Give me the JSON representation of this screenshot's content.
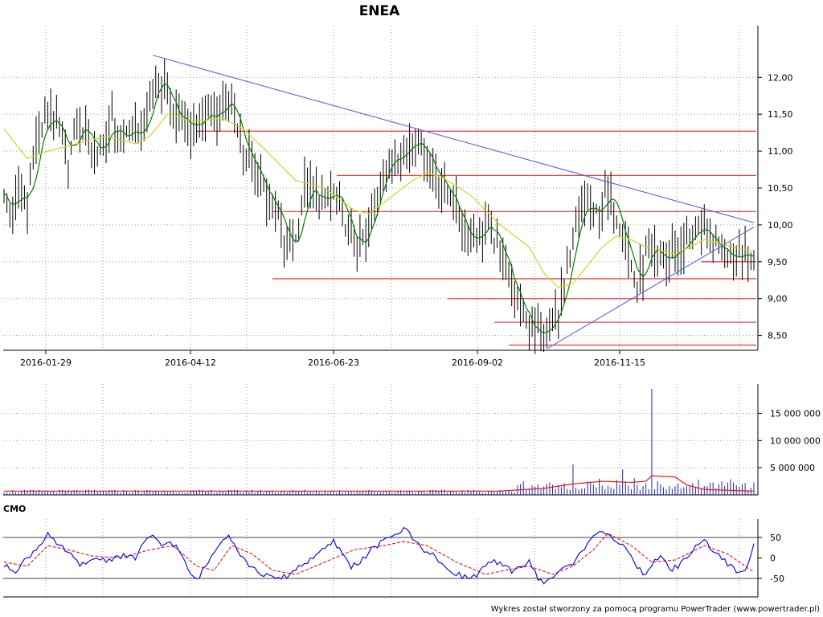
{
  "title": "ENEA",
  "footer": "Wykres został stworzony za pomocą programu PowerTrader (www.powertrader.pl)",
  "colors": {
    "price_bar": "#000000",
    "ma_short": "#008000",
    "ma_long": "#d8d02a",
    "trendline": "#5c5cf0",
    "support_resistance": "#e8474a",
    "volume_bar": "#2222aa",
    "volume_avg": "#ee1111",
    "cmo_line": "#1010dd",
    "cmo_signal": "#ee1111"
  },
  "chart_data": [
    {
      "type": "ohlc",
      "name": "price",
      "x_tick_labels": [
        "2016-01-29",
        "2016-04-12",
        "2016-06-23",
        "2016-09-02",
        "2016-11-15"
      ],
      "y_tick_labels": [
        "12,00",
        "11,50",
        "11,00",
        "10,50",
        "10,00",
        "9,50",
        "9,00",
        "8,50"
      ],
      "y_ticks": [
        12.0,
        11.5,
        11.0,
        10.5,
        10.0,
        9.5,
        9.0,
        8.5
      ],
      "ylim": [
        8.3,
        12.7
      ],
      "x_range": [
        0,
        257
      ],
      "close_anchors": [
        [
          0,
          10.5
        ],
        [
          2,
          10.1
        ],
        [
          5,
          10.5
        ],
        [
          8,
          10.2
        ],
        [
          10,
          11.0
        ],
        [
          13,
          11.3
        ],
        [
          16,
          11.5
        ],
        [
          19,
          11.2
        ],
        [
          22,
          10.9
        ],
        [
          25,
          11.3
        ],
        [
          28,
          11.3
        ],
        [
          31,
          11.0
        ],
        [
          34,
          11.1
        ],
        [
          37,
          11.4
        ],
        [
          40,
          11.1
        ],
        [
          43,
          11.3
        ],
        [
          46,
          11.2
        ],
        [
          49,
          11.4
        ],
        [
          52,
          12.0
        ],
        [
          55,
          11.9
        ],
        [
          58,
          11.5
        ],
        [
          61,
          11.4
        ],
        [
          64,
          11.3
        ],
        [
          67,
          11.4
        ],
        [
          70,
          11.5
        ],
        [
          73,
          11.5
        ],
        [
          76,
          11.7
        ],
        [
          79,
          11.5
        ],
        [
          82,
          11.0
        ],
        [
          85,
          10.8
        ],
        [
          88,
          10.6
        ],
        [
          91,
          10.3
        ],
        [
          94,
          10.1
        ],
        [
          97,
          9.7
        ],
        [
          100,
          9.8
        ],
        [
          103,
          10.5
        ],
        [
          106,
          10.4
        ],
        [
          109,
          10.3
        ],
        [
          112,
          10.4
        ],
        [
          115,
          10.3
        ],
        [
          118,
          9.9
        ],
        [
          121,
          9.7
        ],
        [
          124,
          9.8
        ],
        [
          127,
          10.3
        ],
        [
          130,
          10.8
        ],
        [
          133,
          10.9
        ],
        [
          136,
          11.0
        ],
        [
          139,
          11.1
        ],
        [
          142,
          11.2
        ],
        [
          145,
          10.9
        ],
        [
          148,
          10.7
        ],
        [
          151,
          10.5
        ],
        [
          154,
          10.3
        ],
        [
          157,
          10.0
        ],
        [
          160,
          9.8
        ],
        [
          163,
          9.9
        ],
        [
          166,
          10.0
        ],
        [
          169,
          9.7
        ],
        [
          172,
          9.5
        ],
        [
          175,
          9.0
        ],
        [
          178,
          8.8
        ],
        [
          181,
          8.6
        ],
        [
          184,
          8.5
        ],
        [
          187,
          8.6
        ],
        [
          190,
          8.9
        ],
        [
          193,
          9.3
        ],
        [
          196,
          10.0
        ],
        [
          199,
          10.3
        ],
        [
          202,
          10.1
        ],
        [
          205,
          10.3
        ],
        [
          208,
          10.4
        ],
        [
          211,
          10.0
        ],
        [
          214,
          9.6
        ],
        [
          217,
          9.1
        ],
        [
          220,
          9.6
        ],
        [
          223,
          9.6
        ],
        [
          226,
          9.5
        ],
        [
          229,
          9.6
        ],
        [
          232,
          9.7
        ],
        [
          235,
          9.8
        ],
        [
          238,
          10.0
        ],
        [
          241,
          9.8
        ],
        [
          244,
          9.7
        ],
        [
          247,
          9.65
        ],
        [
          250,
          9.6
        ],
        [
          253,
          9.65
        ],
        [
          256,
          9.6
        ]
      ],
      "ma_long_anchors": [
        [
          0,
          11.3
        ],
        [
          8,
          10.9
        ],
        [
          15,
          11.0
        ],
        [
          25,
          11.1
        ],
        [
          35,
          11.2
        ],
        [
          45,
          11.1
        ],
        [
          50,
          11.2
        ],
        [
          56,
          11.5
        ],
        [
          65,
          11.4
        ],
        [
          75,
          11.45
        ],
        [
          82,
          11.3
        ],
        [
          90,
          11.0
        ],
        [
          100,
          10.6
        ],
        [
          110,
          10.5
        ],
        [
          120,
          10.2
        ],
        [
          125,
          10.15
        ],
        [
          130,
          10.3
        ],
        [
          140,
          10.6
        ],
        [
          145,
          10.7
        ],
        [
          150,
          10.65
        ],
        [
          160,
          10.4
        ],
        [
          170,
          10.0
        ],
        [
          180,
          9.7
        ],
        [
          185,
          9.35
        ],
        [
          190,
          9.15
        ],
        [
          195,
          9.2
        ],
        [
          200,
          9.45
        ],
        [
          205,
          9.7
        ],
        [
          210,
          9.85
        ],
        [
          215,
          9.8
        ],
        [
          220,
          9.7
        ],
        [
          230,
          9.6
        ],
        [
          240,
          9.8
        ],
        [
          250,
          9.7
        ],
        [
          256,
          9.65
        ]
      ],
      "trendlines": [
        {
          "from": [
            51,
            12.3
          ],
          "to": [
            257,
            10.03
          ]
        },
        {
          "from": [
            186,
            8.32
          ],
          "to": [
            257,
            9.97
          ]
        }
      ],
      "horizontal_levels": [
        {
          "price": 11.27,
          "x_start": 66
        },
        {
          "price": 10.67,
          "x_start": 114
        },
        {
          "price": 10.18,
          "x_start": 92
        },
        {
          "price": 9.5,
          "x_start": 239
        },
        {
          "price": 9.27,
          "x_start": 92
        },
        {
          "price": 9.0,
          "x_start": 152
        },
        {
          "price": 8.68,
          "x_start": 168
        },
        {
          "price": 8.37,
          "x_start": 173
        }
      ]
    },
    {
      "type": "bar",
      "name": "volume",
      "y_tick_labels": [
        "15 000 000",
        "10 000 000",
        "5 000 000"
      ],
      "y_ticks": [
        15000000,
        10000000,
        5000000
      ],
      "ylim": [
        0,
        19500000
      ],
      "baseline_volume": 700000,
      "spikes": [
        [
          190,
          1800000
        ],
        [
          195,
          5600000
        ],
        [
          200,
          2500000
        ],
        [
          212,
          4700000
        ],
        [
          216,
          3100000
        ],
        [
          222,
          19500000
        ],
        [
          230,
          1600000
        ]
      ],
      "average_anchors": [
        [
          0,
          700000
        ],
        [
          170,
          700000
        ],
        [
          185,
          1200000
        ],
        [
          195,
          2000000
        ],
        [
          205,
          2500000
        ],
        [
          215,
          2300000
        ],
        [
          220,
          2500000
        ],
        [
          222,
          3500000
        ],
        [
          230,
          3300000
        ],
        [
          234,
          1800000
        ],
        [
          240,
          1000000
        ],
        [
          256,
          700000
        ]
      ]
    },
    {
      "type": "line",
      "name": "CMO",
      "y_tick_labels": [
        "50",
        "0",
        "-50"
      ],
      "y_ticks": [
        50,
        0,
        -50
      ],
      "ylim": [
        -95,
        95
      ],
      "cmo_anchors": [
        [
          0,
          -20
        ],
        [
          4,
          -30
        ],
        [
          8,
          0
        ],
        [
          12,
          30
        ],
        [
          15,
          60
        ],
        [
          18,
          30
        ],
        [
          21,
          20
        ],
        [
          25,
          -10
        ],
        [
          28,
          -20
        ],
        [
          31,
          0
        ],
        [
          35,
          -5
        ],
        [
          40,
          5
        ],
        [
          45,
          0
        ],
        [
          48,
          40
        ],
        [
          51,
          50
        ],
        [
          54,
          30
        ],
        [
          57,
          40
        ],
        [
          60,
          20
        ],
        [
          63,
          -30
        ],
        [
          66,
          -55
        ],
        [
          70,
          -10
        ],
        [
          74,
          40
        ],
        [
          77,
          60
        ],
        [
          80,
          20
        ],
        [
          83,
          -10
        ],
        [
          86,
          -30
        ],
        [
          89,
          -40
        ],
        [
          92,
          -50
        ],
        [
          95,
          -50
        ],
        [
          98,
          -40
        ],
        [
          101,
          -20
        ],
        [
          104,
          -10
        ],
        [
          107,
          10
        ],
        [
          110,
          20
        ],
        [
          113,
          40
        ],
        [
          116,
          10
        ],
        [
          119,
          -20
        ],
        [
          122,
          -10
        ],
        [
          126,
          20
        ],
        [
          130,
          40
        ],
        [
          134,
          60
        ],
        [
          138,
          70
        ],
        [
          141,
          40
        ],
        [
          144,
          20
        ],
        [
          147,
          10
        ],
        [
          150,
          -20
        ],
        [
          153,
          -30
        ],
        [
          156,
          -40
        ],
        [
          159,
          -50
        ],
        [
          162,
          -40
        ],
        [
          165,
          -20
        ],
        [
          168,
          -10
        ],
        [
          171,
          -20
        ],
        [
          174,
          -30
        ],
        [
          177,
          -20
        ],
        [
          180,
          -10
        ],
        [
          183,
          -50
        ],
        [
          186,
          -60
        ],
        [
          189,
          -40
        ],
        [
          192,
          -20
        ],
        [
          195,
          -20
        ],
        [
          198,
          20
        ],
        [
          201,
          40
        ],
        [
          204,
          70
        ],
        [
          207,
          60
        ],
        [
          210,
          40
        ],
        [
          213,
          20
        ],
        [
          216,
          -10
        ],
        [
          219,
          -40
        ],
        [
          222,
          -20
        ],
        [
          225,
          10
        ],
        [
          228,
          -30
        ],
        [
          231,
          -20
        ],
        [
          234,
          0
        ],
        [
          237,
          30
        ],
        [
          240,
          40
        ],
        [
          243,
          20
        ],
        [
          246,
          0
        ],
        [
          249,
          -20
        ],
        [
          252,
          -40
        ],
        [
          255,
          -20
        ],
        [
          257,
          30
        ]
      ],
      "signal_anchors": [
        [
          0,
          -10
        ],
        [
          8,
          -20
        ],
        [
          15,
          30
        ],
        [
          22,
          20
        ],
        [
          30,
          5
        ],
        [
          40,
          0
        ],
        [
          50,
          20
        ],
        [
          58,
          30
        ],
        [
          66,
          -20
        ],
        [
          72,
          -30
        ],
        [
          78,
          30
        ],
        [
          85,
          10
        ],
        [
          92,
          -30
        ],
        [
          100,
          -40
        ],
        [
          110,
          -10
        ],
        [
          120,
          20
        ],
        [
          130,
          30
        ],
        [
          137,
          40
        ],
        [
          145,
          30
        ],
        [
          155,
          -10
        ],
        [
          165,
          -40
        ],
        [
          172,
          -30
        ],
        [
          180,
          -20
        ],
        [
          188,
          -40
        ],
        [
          195,
          -20
        ],
        [
          202,
          20
        ],
        [
          207,
          60
        ],
        [
          215,
          30
        ],
        [
          222,
          -10
        ],
        [
          230,
          -5
        ],
        [
          240,
          30
        ],
        [
          248,
          10
        ],
        [
          256,
          -30
        ]
      ]
    }
  ]
}
